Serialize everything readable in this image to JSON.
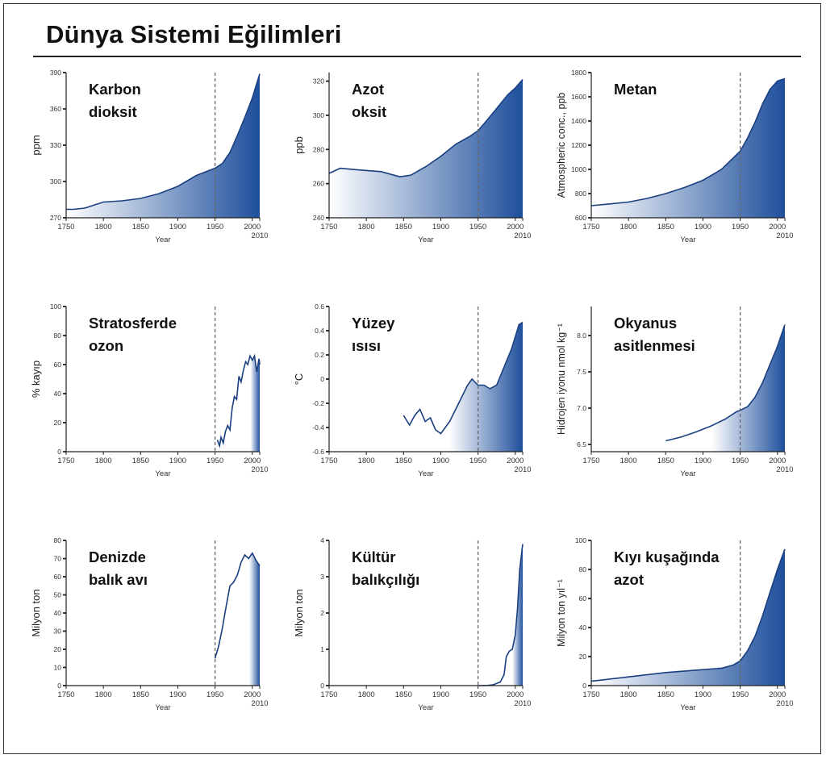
{
  "title": "Dünya Sistemi Eğilimleri",
  "colors": {
    "fill_dark": "#1e4f9c",
    "fill_light": "#ffffff",
    "line": "#1a3f80",
    "dashed": "#666666"
  },
  "chart_data": [
    {
      "type": "area",
      "title_lines": [
        "Karbon",
        "dioksit"
      ],
      "ylabel": "ppm",
      "xlabel": "Year",
      "xlim": [
        1750,
        2010
      ],
      "ylim": [
        270,
        390
      ],
      "x_ticks": [
        "1750",
        "1800",
        "1850",
        "1900",
        "1950",
        "2000",
        "2010"
      ],
      "y_ticks": [
        {
          "v": 270,
          "label": "270"
        },
        {
          "v": 300,
          "label": "300"
        },
        {
          "v": 330,
          "label": "330"
        },
        {
          "v": 360,
          "label": "360"
        },
        {
          "v": 390,
          "label": "390"
        }
      ],
      "ref_line": 1950,
      "x": [
        1750,
        1760,
        1775,
        1800,
        1825,
        1850,
        1875,
        1900,
        1925,
        1950,
        1960,
        1970,
        1980,
        1990,
        2000,
        2010
      ],
      "y": [
        277,
        277,
        278,
        283,
        284,
        286,
        290,
        296,
        305,
        311,
        315,
        324,
        338,
        353,
        369,
        389
      ]
    },
    {
      "type": "area",
      "title_lines": [
        "Azot",
        "oksit"
      ],
      "ylabel": "ppb",
      "xlabel": "Year",
      "xlim": [
        1750,
        2010
      ],
      "ylim": [
        240,
        325
      ],
      "x_ticks": [
        "1750",
        "1800",
        "1850",
        "1900",
        "1950",
        "2000",
        "2010"
      ],
      "y_ticks": [
        {
          "v": 240,
          "label": "240"
        },
        {
          "v": 260,
          "label": "260"
        },
        {
          "v": 280,
          "label": "280"
        },
        {
          "v": 300,
          "label": "300"
        },
        {
          "v": 320,
          "label": "320"
        }
      ],
      "ref_line": 1950,
      "x": [
        1750,
        1765,
        1790,
        1820,
        1845,
        1860,
        1880,
        1900,
        1920,
        1940,
        1950,
        1960,
        1975,
        1990,
        2000,
        2010
      ],
      "y": [
        266,
        269,
        268,
        267,
        264,
        265,
        270,
        276,
        283,
        288,
        291,
        296,
        304,
        312,
        316,
        321
      ]
    },
    {
      "type": "area",
      "title_lines": [
        "Metan"
      ],
      "ylabel": "Atmospheric conc., ppb",
      "xlabel": "Year",
      "xlim": [
        1750,
        2010
      ],
      "ylim": [
        600,
        1800
      ],
      "x_ticks": [
        "1750",
        "1800",
        "1850",
        "1900",
        "1950",
        "2000",
        "2010"
      ],
      "y_ticks": [
        {
          "v": 600,
          "label": "600"
        },
        {
          "v": 800,
          "label": "800"
        },
        {
          "v": 1000,
          "label": "1000"
        },
        {
          "v": 1200,
          "label": "1200"
        },
        {
          "v": 1400,
          "label": "1400"
        },
        {
          "v": 1600,
          "label": "1600"
        },
        {
          "v": 1800,
          "label": "1800"
        }
      ],
      "ref_line": 1950,
      "x": [
        1750,
        1775,
        1800,
        1825,
        1850,
        1875,
        1900,
        1925,
        1950,
        1960,
        1970,
        1980,
        1990,
        2000,
        2010
      ],
      "y": [
        700,
        715,
        730,
        760,
        800,
        850,
        910,
        1000,
        1150,
        1260,
        1390,
        1540,
        1660,
        1730,
        1750
      ]
    },
    {
      "type": "area",
      "title_lines": [
        "Stratosferde",
        "ozon"
      ],
      "ylabel": "% kayıp",
      "xlabel": "Year",
      "xlim": [
        1750,
        2010
      ],
      "ylim": [
        0,
        100
      ],
      "x_ticks": [
        "1750",
        "1800",
        "1850",
        "1900",
        "1950",
        "2000",
        "2010"
      ],
      "y_ticks": [
        {
          "v": 0,
          "label": "0"
        },
        {
          "v": 20,
          "label": "20"
        },
        {
          "v": 40,
          "label": "40"
        },
        {
          "v": 60,
          "label": "60"
        },
        {
          "v": 80,
          "label": "80"
        },
        {
          "v": 100,
          "label": "100"
        }
      ],
      "ref_line": 1950,
      "x": [
        1953,
        1956,
        1958,
        1961,
        1964,
        1967,
        1970,
        1973,
        1976,
        1979,
        1982,
        1985,
        1988,
        1991,
        1994,
        1997,
        2000,
        2003,
        2006,
        2009,
        2010
      ],
      "y": [
        8,
        4,
        10,
        6,
        14,
        18,
        15,
        30,
        38,
        36,
        52,
        48,
        56,
        62,
        60,
        66,
        63,
        66,
        55,
        64,
        60
      ]
    },
    {
      "type": "area",
      "title_lines": [
        "Yüzey",
        "ısısı"
      ],
      "ylabel": "°C",
      "xlabel": "Year",
      "xlim": [
        1750,
        2010
      ],
      "ylim": [
        -0.6,
        0.6
      ],
      "x_ticks": [
        "1750",
        "1800",
        "1850",
        "1900",
        "1950",
        "2000",
        "2010"
      ],
      "y_ticks": [
        {
          "v": -0.6,
          "label": "-0.6"
        },
        {
          "v": -0.4,
          "label": "-0.4"
        },
        {
          "v": -0.2,
          "label": "-0.2"
        },
        {
          "v": 0,
          "label": "0"
        },
        {
          "v": 0.2,
          "label": "0.2"
        },
        {
          "v": 0.4,
          "label": "0.4"
        },
        {
          "v": 0.6,
          "label": "0.6"
        }
      ],
      "ref_line": 1950,
      "x": [
        1850,
        1858,
        1865,
        1872,
        1879,
        1886,
        1893,
        1900,
        1906,
        1912,
        1920,
        1928,
        1936,
        1942,
        1950,
        1958,
        1966,
        1975,
        1985,
        1995,
        2005,
        2010
      ],
      "y": [
        -0.3,
        -0.38,
        -0.3,
        -0.25,
        -0.35,
        -0.32,
        -0.42,
        -0.45,
        -0.4,
        -0.35,
        -0.25,
        -0.15,
        -0.05,
        0.0,
        -0.05,
        -0.05,
        -0.08,
        -0.05,
        0.1,
        0.25,
        0.45,
        0.47
      ]
    },
    {
      "type": "area",
      "title_lines": [
        "Okyanus",
        "asitlenmesi"
      ],
      "ylabel": "Hidrojen iyonu nmol kg⁻¹",
      "xlabel": "Year",
      "xlim": [
        1750,
        2010
      ],
      "ylim": [
        6.4,
        8.4
      ],
      "x_ticks": [
        "1750",
        "1800",
        "1850",
        "1900",
        "1950",
        "2000",
        "2010"
      ],
      "y_ticks": [
        {
          "v": 6.5,
          "label": "6.5"
        },
        {
          "v": 7.0,
          "label": "7.0"
        },
        {
          "v": 7.5,
          "label": "7.5"
        },
        {
          "v": 8.0,
          "label": "8.0"
        }
      ],
      "ref_line": 1950,
      "x": [
        1850,
        1870,
        1890,
        1910,
        1930,
        1945,
        1950,
        1960,
        1970,
        1980,
        1990,
        2000,
        2010
      ],
      "y": [
        6.55,
        6.6,
        6.67,
        6.75,
        6.85,
        6.95,
        6.97,
        7.02,
        7.15,
        7.35,
        7.6,
        7.85,
        8.15
      ]
    },
    {
      "type": "area",
      "title_lines": [
        "Denizde",
        "balık avı"
      ],
      "ylabel": "Milyon ton",
      "xlabel": "Year",
      "xlim": [
        1750,
        2010
      ],
      "ylim": [
        0,
        80
      ],
      "x_ticks": [
        "1750",
        "1800",
        "1850",
        "1900",
        "1950",
        "2000",
        "2010"
      ],
      "y_ticks": [
        {
          "v": 0,
          "label": "0"
        },
        {
          "v": 10,
          "label": "10"
        },
        {
          "v": 20,
          "label": "20"
        },
        {
          "v": 30,
          "label": "30"
        },
        {
          "v": 40,
          "label": "40"
        },
        {
          "v": 50,
          "label": "50"
        },
        {
          "v": 60,
          "label": "60"
        },
        {
          "v": 70,
          "label": "70"
        },
        {
          "v": 80,
          "label": "80"
        }
      ],
      "ref_line": 1950,
      "x": [
        1950,
        1955,
        1960,
        1965,
        1970,
        1975,
        1980,
        1985,
        1990,
        1995,
        2000,
        2005,
        2010
      ],
      "y": [
        15,
        22,
        32,
        44,
        55,
        57,
        61,
        68,
        72,
        70,
        73,
        69,
        66
      ]
    },
    {
      "type": "area",
      "title_lines": [
        "Kültür",
        "balıkçılığı"
      ],
      "ylabel": "Milyon ton",
      "xlabel": "Year",
      "xlim": [
        1750,
        2010
      ],
      "ylim": [
        0,
        4
      ],
      "x_ticks": [
        "1750",
        "1800",
        "1850",
        "1900",
        "1950",
        "2000",
        "2010"
      ],
      "y_ticks": [
        {
          "v": 0,
          "label": "0"
        },
        {
          "v": 1,
          "label": "1"
        },
        {
          "v": 2,
          "label": "2"
        },
        {
          "v": 3,
          "label": "3"
        },
        {
          "v": 4,
          "label": "4"
        }
      ],
      "ref_line": 1950,
      "x": [
        1950,
        1960,
        1970,
        1980,
        1985,
        1988,
        1992,
        1996,
        2000,
        2003,
        2006,
        2010
      ],
      "y": [
        0,
        0,
        0.02,
        0.1,
        0.3,
        0.8,
        0.95,
        1.0,
        1.4,
        2.1,
        3.2,
        3.9
      ]
    },
    {
      "type": "area",
      "title_lines": [
        "Kıyı kuşağında",
        "azot"
      ],
      "ylabel": "Milyon ton yıl⁻¹",
      "xlabel": "Year",
      "xlim": [
        1750,
        2010
      ],
      "ylim": [
        0,
        100
      ],
      "x_ticks": [
        "1750",
        "1800",
        "1850",
        "1900",
        "1950",
        "2000",
        "2010"
      ],
      "y_ticks": [
        {
          "v": 0,
          "label": "0"
        },
        {
          "v": 20,
          "label": "20"
        },
        {
          "v": 40,
          "label": "40"
        },
        {
          "v": 60,
          "label": "60"
        },
        {
          "v": 80,
          "label": "80"
        },
        {
          "v": 100,
          "label": "100"
        }
      ],
      "ref_line": 1950,
      "x": [
        1750,
        1800,
        1850,
        1900,
        1925,
        1940,
        1950,
        1960,
        1970,
        1980,
        1990,
        2000,
        2010
      ],
      "y": [
        3,
        6,
        9,
        11,
        12,
        14,
        17,
        24,
        34,
        48,
        64,
        80,
        94
      ]
    }
  ]
}
